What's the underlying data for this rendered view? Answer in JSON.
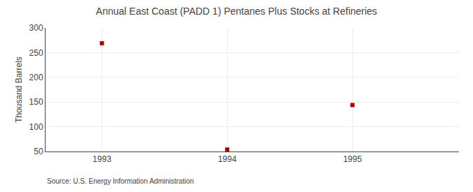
{
  "chart_data": {
    "type": "scatter",
    "title": "Annual East Coast (PADD 1) Pentanes Plus Stocks at Refineries",
    "ylabel": "Thousand Barrels",
    "annotations": [
      "Source: U.S. Energy Information Administration"
    ],
    "x": [
      1993,
      1994,
      1995
    ],
    "values": [
      269,
      54,
      144
    ],
    "color": "#aa0000",
    "marker": "square",
    "xlim": [
      1992.55,
      1995.85
    ],
    "xticks": [
      1993,
      1994,
      1995
    ],
    "ylim": [
      50,
      300
    ],
    "yticks": [
      50,
      100,
      150,
      200,
      250,
      300
    ],
    "grid": true
  }
}
